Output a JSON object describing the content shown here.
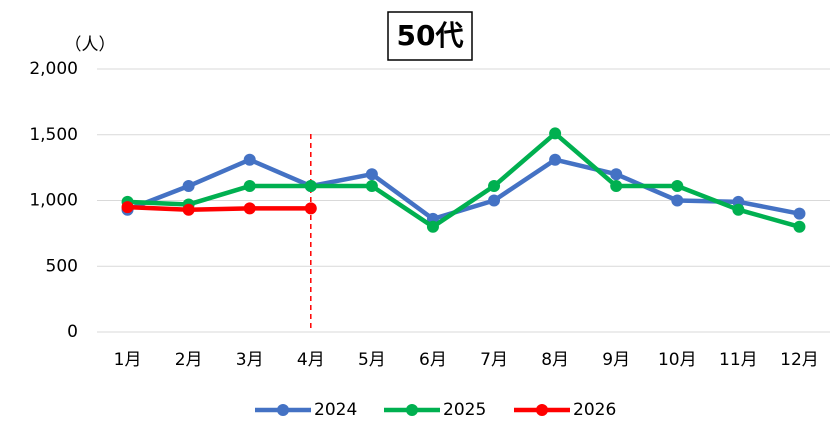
{
  "chart_data": {
    "type": "line",
    "title": "50代",
    "y_unit": "（人）",
    "categories": [
      "1月",
      "2月",
      "3月",
      "4月",
      "5月",
      "6月",
      "7月",
      "8月",
      "9月",
      "10月",
      "11月",
      "12月"
    ],
    "series": [
      {
        "name": "2024",
        "color": "#4472c4",
        "values": [
          930,
          1110,
          1310,
          1110,
          1200,
          860,
          1000,
          1310,
          1200,
          1000,
          990,
          900
        ]
      },
      {
        "name": "2025",
        "color": "#00b050",
        "values": [
          990,
          970,
          1110,
          1110,
          1110,
          800,
          1110,
          1510,
          1110,
          1110,
          930,
          800
        ]
      },
      {
        "name": "2026",
        "color": "#ff0000",
        "values": [
          950,
          930,
          940,
          940,
          null,
          null,
          null,
          null,
          null,
          null,
          null,
          null
        ]
      }
    ],
    "ylim": [
      0,
      2000
    ],
    "yticks": [
      0,
      500,
      {
        "value": 1000,
        "label": "1,000"
      },
      {
        "value": 1500,
        "label": "1,500"
      },
      {
        "value": 2000,
        "label": "2,000"
      }
    ],
    "grid": true,
    "legend": "bottom",
    "vline": {
      "category_index": 3,
      "color": "#ff0000"
    }
  }
}
